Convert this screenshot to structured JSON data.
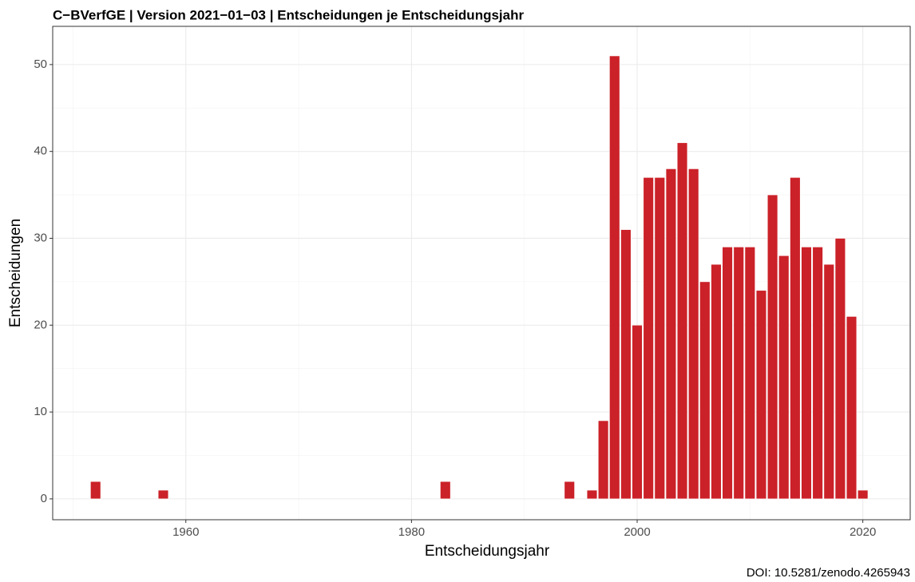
{
  "chart_data": {
    "type": "bar",
    "title": "C−BVerfGE | Version 2021−01−03 | Entscheidungen je Entscheidungsjahr",
    "x_label": "Entscheidungsjahr",
    "y_label": "Entscheidungen",
    "caption": "DOI: 10.5281/zenodo.4265943",
    "x": [
      1952,
      1958,
      1983,
      1994,
      1996,
      1997,
      1998,
      1999,
      2000,
      2001,
      2002,
      2003,
      2004,
      2005,
      2006,
      2007,
      2008,
      2009,
      2010,
      2011,
      2012,
      2013,
      2014,
      2015,
      2016,
      2017,
      2018,
      2019,
      2020
    ],
    "values": [
      2,
      1,
      2,
      2,
      1,
      9,
      51,
      31,
      20,
      37,
      37,
      38,
      41,
      38,
      25,
      27,
      29,
      29,
      29,
      24,
      35,
      28,
      37,
      29,
      29,
      27,
      30,
      21,
      1
    ],
    "color": "#cb2128",
    "xlim": [
      1948.2,
      2024.2
    ],
    "ylim": [
      -2.4,
      54.4
    ],
    "xticks": [
      1960,
      1980,
      2000,
      2020
    ],
    "yticks": [
      0,
      10,
      20,
      30,
      40,
      50
    ],
    "x_minor_grid": [
      1950,
      1970,
      1990,
      2010
    ],
    "y_minor_grid": [
      5,
      15,
      25,
      35,
      45
    ],
    "grid": true
  }
}
